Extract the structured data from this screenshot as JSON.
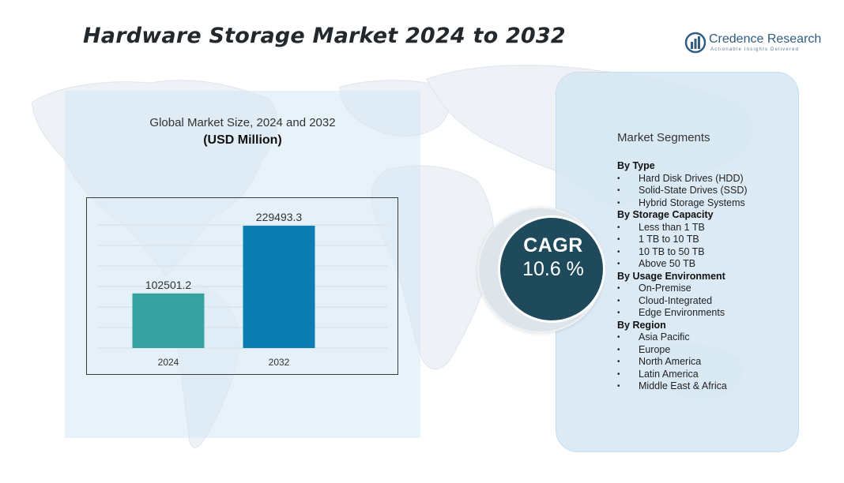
{
  "title": "Hardware Storage Market 2024 to 2032",
  "brand": {
    "name": "Credence Research",
    "tagline": "Actionable Insights Delivered"
  },
  "chart_data": {
    "type": "bar",
    "title": "Global Market Size, 2024 and 2032",
    "subtitle": "(USD Million)",
    "categories": [
      "2024",
      "2032"
    ],
    "values": [
      102501.2,
      229493.3
    ],
    "colors": [
      "#36a3a1",
      "#0c7db3"
    ],
    "grid": true,
    "legend": "none"
  },
  "cagr": {
    "label": "CAGR",
    "value": "10.6 %"
  },
  "segments": {
    "title": "Market Segments",
    "groups": [
      {
        "heading": "By  Type",
        "items": [
          "Hard Disk Drives (HDD)",
          "Solid-State Drives (SSD)",
          "Hybrid Storage Systems"
        ]
      },
      {
        "heading": "By Storage Capacity",
        "items": [
          "Less than 1 TB",
          "1 TB to 10 TB",
          "10 TB to 50 TB",
          "Above 50 TB"
        ]
      },
      {
        "heading": "By Usage Environment",
        "items": [
          "On-Premise",
          "Cloud-Integrated",
          "Edge Environments"
        ]
      },
      {
        "heading": "By Region",
        "items": [
          "Asia Pacific",
          "Europe",
          "North America",
          "Latin America",
          "Middle East & Africa"
        ]
      }
    ]
  },
  "colors": {
    "panel": "#d6e7f4",
    "cagr_circle": "#1f4a5c",
    "brand": "#2f5d83"
  }
}
